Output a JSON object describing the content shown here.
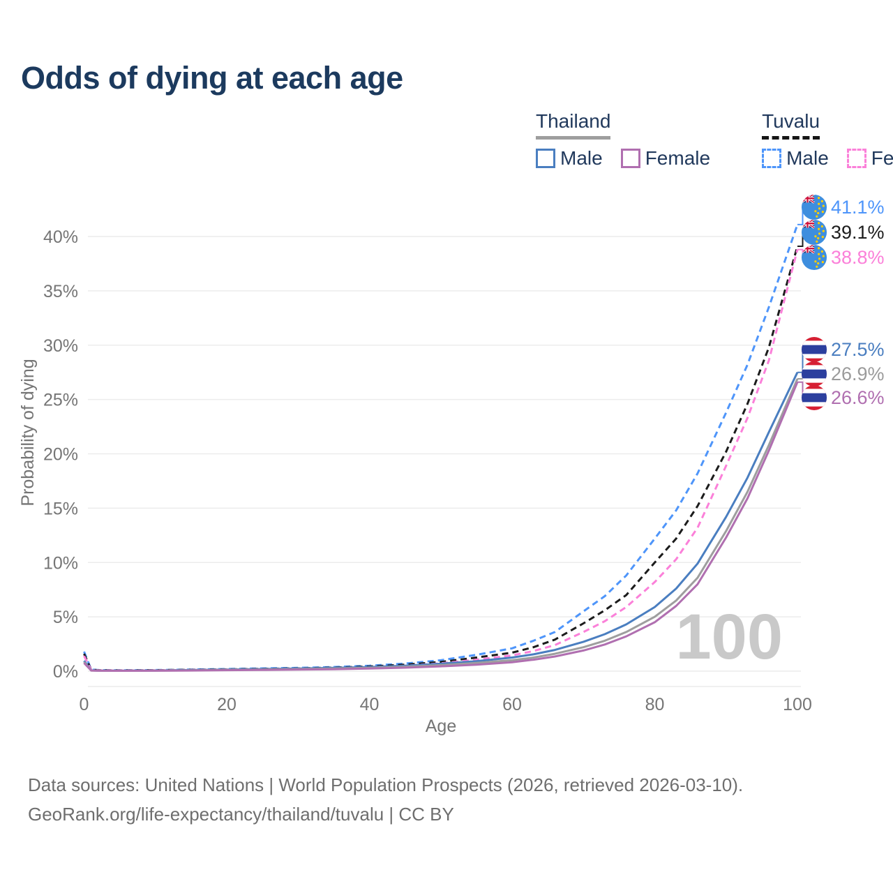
{
  "header": {
    "title": "Odds of dying at each age"
  },
  "legend": {
    "thailand": {
      "label": "Thailand",
      "underline_color": "#9e9e9e",
      "male_label": "Male",
      "female_label": "Female",
      "male_color": "#4a7ec0",
      "female_color": "#b06fb0"
    },
    "tuvalu": {
      "label": "Tuvalu",
      "underline_color": "#161616",
      "male_label": "Male",
      "female_label": "Female",
      "male_color": "#4e95fa",
      "female_color": "#fb80d9"
    }
  },
  "chart_data": {
    "type": "line",
    "title": "Odds of dying at each age",
    "xlabel": "Age",
    "ylabel": "Probability of dying",
    "xlim": [
      0,
      100
    ],
    "ylim": [
      0,
      42
    ],
    "grid": true,
    "legend_position": "top-right",
    "x_ticks": [
      0,
      20,
      40,
      60,
      80,
      100
    ],
    "y_ticks": [
      0,
      5,
      10,
      15,
      20,
      25,
      30,
      35,
      40
    ],
    "y_tick_labels": [
      "0%",
      "5%",
      "10%",
      "15%",
      "20%",
      "25%",
      "30%",
      "35%",
      "40%"
    ],
    "watermark": "100",
    "ages": [
      0,
      1,
      2,
      5,
      10,
      15,
      20,
      25,
      30,
      35,
      40,
      45,
      50,
      55,
      60,
      63,
      66,
      70,
      73,
      76,
      80,
      83,
      86,
      90,
      93,
      96,
      100
    ],
    "series": [
      {
        "name": "Tuvalu Male",
        "color": "#4e95fa",
        "dashed": true,
        "values": [
          1.8,
          0.15,
          0.1,
          0.08,
          0.1,
          0.15,
          0.2,
          0.25,
          0.3,
          0.38,
          0.5,
          0.7,
          1.0,
          1.5,
          2.1,
          2.8,
          3.6,
          5.5,
          6.9,
          8.8,
          12.2,
          14.8,
          18.2,
          23.8,
          28.2,
          33.5,
          41.1
        ]
      },
      {
        "name": "Tuvalu (both sexes)",
        "color": "#1c1c1c",
        "dashed": true,
        "values": [
          1.6,
          0.13,
          0.09,
          0.07,
          0.09,
          0.13,
          0.17,
          0.21,
          0.26,
          0.33,
          0.43,
          0.6,
          0.85,
          1.25,
          1.7,
          2.2,
          2.9,
          4.4,
          5.6,
          7.0,
          10.0,
          12.2,
          15.2,
          20.2,
          24.6,
          29.8,
          39.1
        ]
      },
      {
        "name": "Tuvalu Female",
        "color": "#fb80d9",
        "dashed": true,
        "values": [
          1.4,
          0.12,
          0.08,
          0.06,
          0.08,
          0.11,
          0.14,
          0.18,
          0.22,
          0.28,
          0.37,
          0.5,
          0.72,
          1.05,
          1.45,
          1.85,
          2.4,
          3.6,
          4.6,
          5.9,
          8.2,
          10.3,
          13.2,
          18.9,
          23.3,
          28.6,
          38.8
        ]
      },
      {
        "name": "Thailand Male",
        "color": "#4a7ec0",
        "dashed": false,
        "values": [
          0.95,
          0.07,
          0.05,
          0.04,
          0.06,
          0.1,
          0.15,
          0.19,
          0.24,
          0.3,
          0.38,
          0.5,
          0.68,
          0.92,
          1.25,
          1.55,
          1.95,
          2.7,
          3.4,
          4.3,
          5.9,
          7.6,
          9.9,
          14.2,
          17.8,
          22.0,
          27.5
        ]
      },
      {
        "name": "Thailand (both sexes)",
        "color": "#9e9e9e",
        "dashed": false,
        "values": [
          0.85,
          0.06,
          0.045,
          0.035,
          0.05,
          0.08,
          0.12,
          0.15,
          0.19,
          0.24,
          0.31,
          0.41,
          0.55,
          0.75,
          1.0,
          1.25,
          1.6,
          2.2,
          2.8,
          3.6,
          5.0,
          6.5,
          8.6,
          12.9,
          16.5,
          20.8,
          26.9
        ]
      },
      {
        "name": "Thailand Female",
        "color": "#b06fb0",
        "dashed": false,
        "values": [
          0.75,
          0.055,
          0.04,
          0.03,
          0.04,
          0.06,
          0.09,
          0.11,
          0.14,
          0.18,
          0.24,
          0.32,
          0.44,
          0.6,
          0.82,
          1.05,
          1.35,
          1.9,
          2.45,
          3.2,
          4.5,
          6.0,
          8.0,
          12.3,
          15.9,
          20.3,
          26.6
        ]
      }
    ],
    "end_labels": [
      {
        "series": "Tuvalu Male",
        "text": "41.1%",
        "value": 41.1,
        "color": "#4e95fa",
        "flag": "tuvalu",
        "group": "top"
      },
      {
        "series": "Tuvalu (both sexes)",
        "text": "39.1%",
        "value": 39.1,
        "color": "#1c1c1c",
        "flag": "tuvalu",
        "group": "top"
      },
      {
        "series": "Tuvalu Female",
        "text": "38.8%",
        "value": 38.8,
        "color": "#fb80d9",
        "flag": "tuvalu",
        "group": "top"
      },
      {
        "series": "Thailand Male",
        "text": "27.5%",
        "value": 27.5,
        "color": "#4a7ec0",
        "flag": "thailand",
        "group": "bottom"
      },
      {
        "series": "Thailand (both sexes)",
        "text": "26.9%",
        "value": 26.9,
        "color": "#9b9b9b",
        "flag": "thailand",
        "group": "bottom"
      },
      {
        "series": "Thailand Female",
        "text": "26.6%",
        "value": 26.6,
        "color": "#b06fb0",
        "flag": "thailand",
        "group": "bottom"
      }
    ],
    "flag_colors": {
      "tuvalu_field": "#3e8ede",
      "tuvalu_star": "#ffce00",
      "jack_navy": "#1a2f6e",
      "jack_red": "#d0103a",
      "thailand_red": "#d61f33",
      "thailand_blue": "#2c3f9e"
    }
  },
  "footer": {
    "line1": "Data sources: United Nations | World Population Prospects (2026, retrieved 2026-03-10).",
    "line2": "GeoRank.org/life-expectancy/thailand/tuvalu | CC BY"
  }
}
